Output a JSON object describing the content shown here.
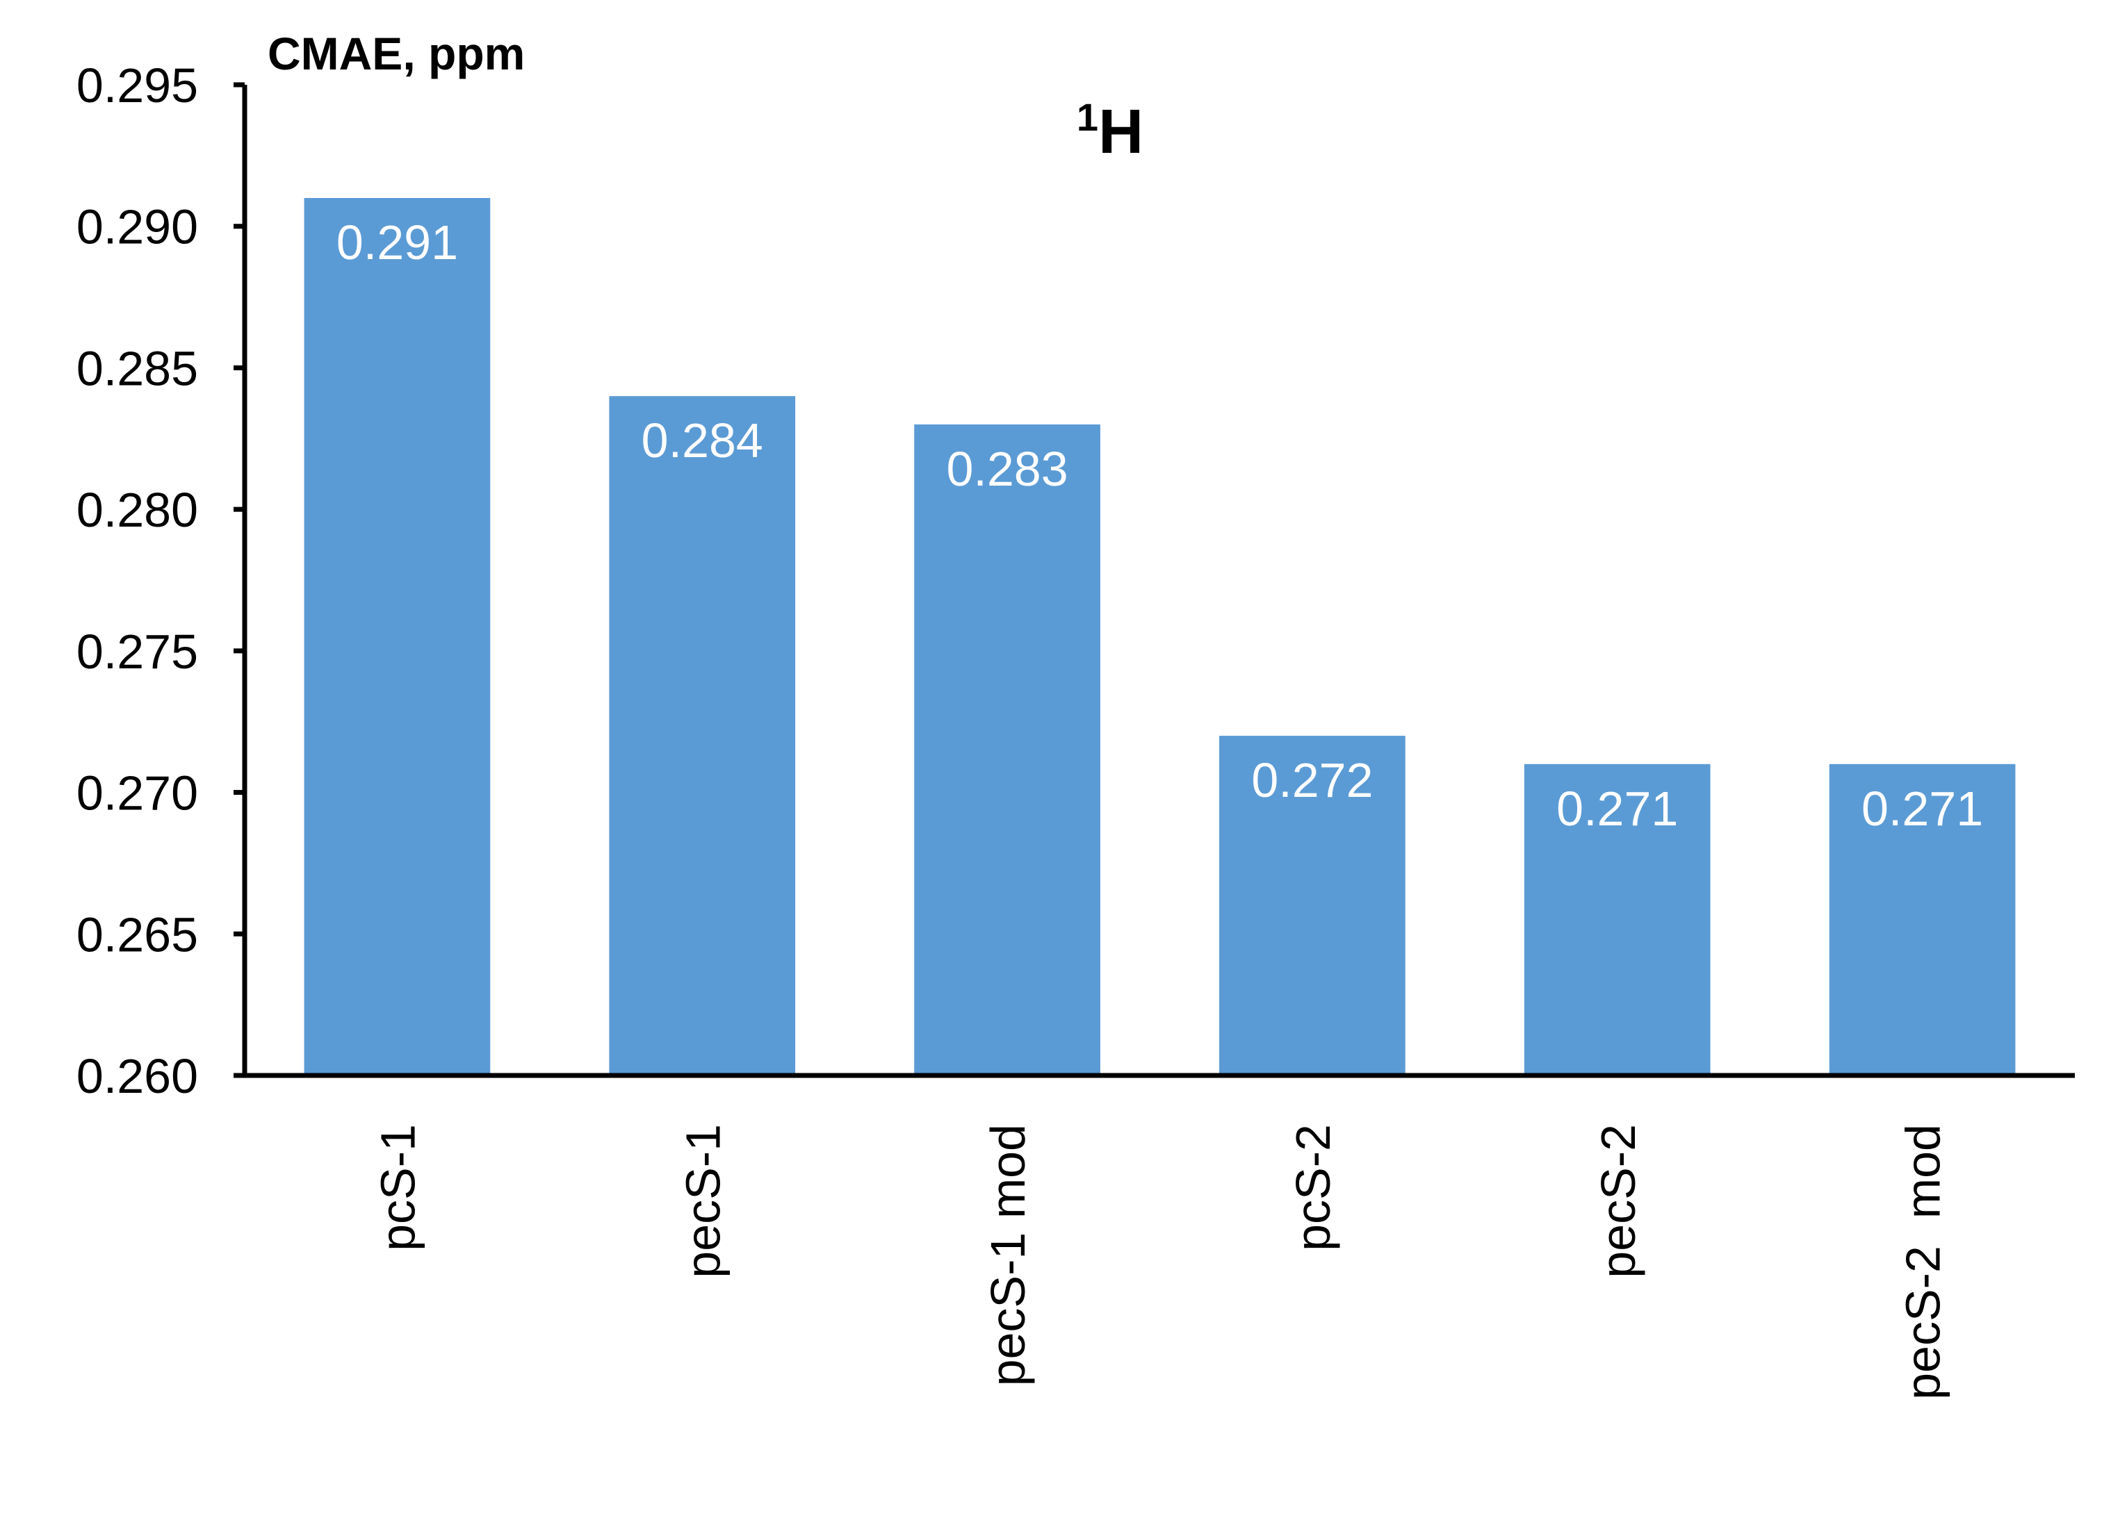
{
  "chart_data": {
    "type": "bar",
    "title": "H",
    "title_superscript": "1",
    "ylabel": "CMAE, ppm",
    "xlabel": "",
    "categories": [
      "pcS-1",
      "pecS-1",
      "pecS-1 mod",
      "pcS-2",
      "pecS-2",
      "pecS-2  mod"
    ],
    "values": [
      0.291,
      0.284,
      0.283,
      0.272,
      0.271,
      0.271
    ],
    "data_labels": [
      "0.291",
      "0.284",
      "0.283",
      "0.272",
      "0.271",
      "0.271"
    ],
    "ylim": [
      0.26,
      0.295
    ],
    "yticks": [
      0.26,
      0.265,
      0.27,
      0.275,
      0.28,
      0.285,
      0.29,
      0.295
    ],
    "ytick_labels": [
      "0.260",
      "0.265",
      "0.270",
      "0.275",
      "0.280",
      "0.285",
      "0.290",
      "0.295"
    ],
    "bar_color": "#5b9bd5",
    "grid": false,
    "legend": "none"
  }
}
